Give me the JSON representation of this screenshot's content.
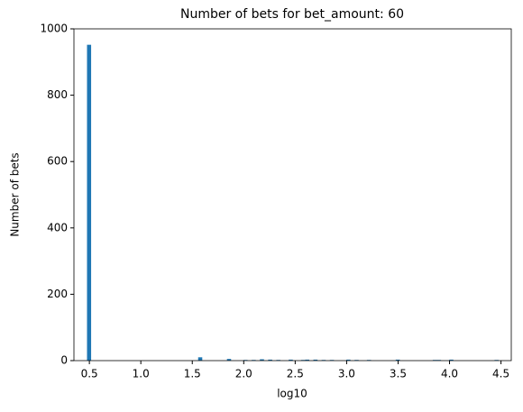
{
  "chart_data": {
    "type": "histogram",
    "title": "Number of bets for bet_amount: 60",
    "x_label": "log10",
    "y_label": "Number of bets",
    "color": "#1f77b4",
    "bins": [
      0.477,
      0.517,
      0.557,
      0.597,
      0.637,
      0.677,
      0.717,
      0.757,
      0.797,
      0.837,
      0.877,
      0.917,
      0.957,
      0.997,
      1.037,
      1.077,
      1.117,
      1.157,
      1.197,
      1.237,
      1.277,
      1.317,
      1.357,
      1.397,
      1.437,
      1.477,
      1.517,
      1.557,
      1.597,
      1.637,
      1.677,
      1.717,
      1.757,
      1.797,
      1.837,
      1.877,
      1.917,
      1.957,
      1.997,
      2.037,
      2.077,
      2.117,
      2.157,
      2.197,
      2.237,
      2.277,
      2.317,
      2.357,
      2.397,
      2.437,
      2.477,
      2.517,
      2.557,
      2.597,
      2.637,
      2.677,
      2.717,
      2.757,
      2.797,
      2.837,
      2.877,
      2.917,
      2.957,
      2.997,
      3.037,
      3.077,
      3.117,
      3.157,
      3.197,
      3.237,
      3.277,
      3.317,
      3.357,
      3.397,
      3.437,
      3.477,
      3.517,
      3.557,
      3.597,
      3.637,
      3.677,
      3.717,
      3.757,
      3.797,
      3.837,
      3.877,
      3.917,
      3.957,
      3.997,
      4.037,
      4.077,
      4.117,
      4.157,
      4.197,
      4.237,
      4.277,
      4.317,
      4.357,
      4.397,
      4.437,
      4.477
    ],
    "values": [
      952,
      0,
      0,
      0,
      0,
      0,
      0,
      0,
      0,
      0,
      0,
      0,
      0,
      0,
      0,
      0,
      0,
      0,
      0,
      0,
      0,
      0,
      0,
      0,
      0,
      0,
      0,
      10,
      0,
      0,
      0,
      0,
      0,
      0,
      5,
      0,
      0,
      0,
      2,
      0,
      2,
      0,
      4,
      0,
      3,
      0,
      2,
      0,
      0,
      3,
      0,
      0,
      2,
      3,
      0,
      3,
      0,
      2,
      0,
      2,
      0,
      0,
      0,
      3,
      0,
      2,
      0,
      0,
      2,
      0,
      0,
      0,
      0,
      0,
      0,
      3,
      0,
      0,
      0,
      0,
      0,
      0,
      0,
      0,
      2,
      2,
      0,
      0,
      3,
      0,
      0,
      0,
      0,
      0,
      0,
      0,
      0,
      0,
      0,
      2
    ],
    "xlim": [
      0.35,
      4.6
    ],
    "ylim": [
      0,
      1000
    ],
    "xticks": [
      0.5,
      {
        "value": 1,
        "label": "1.0"
      },
      1.5,
      {
        "value": 2,
        "label": "2.0"
      },
      2.5,
      {
        "value": 3,
        "label": "3.0"
      },
      3.5,
      {
        "value": 4,
        "label": "4.0"
      },
      4.5
    ],
    "yticks": [
      0,
      200,
      400,
      600,
      800,
      1000
    ]
  }
}
